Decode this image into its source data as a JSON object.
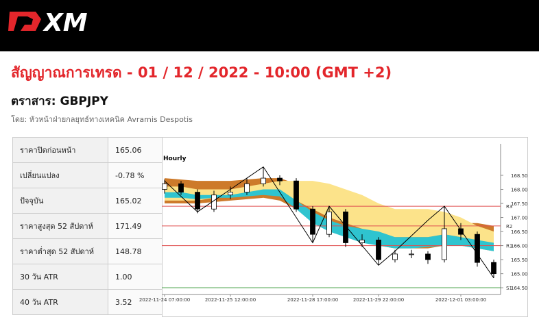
{
  "header": {
    "logo": "XM"
  },
  "title": "สัญญาณการเทรด - 01 / 12 / 2022 - 10:00 (GMT +2)",
  "instrument": "ตราสาร: GBPJPY",
  "author": "โดย: หัวหน้าฝ่ายกลยุทธ์ทางเทคนิค Avramis Despotis",
  "table": {
    "rows": [
      [
        "ราคาปิดก่อนหน้า",
        "165.06"
      ],
      [
        "เปลี่ยนแปลง",
        "-0.78 %"
      ],
      [
        "ปัจจุบัน",
        "165.02"
      ],
      [
        "ราคาสูงสุด 52 สัปดาห์",
        "171.49"
      ],
      [
        "ราคาต่ำสุด 52 สัปดาห์",
        "148.78"
      ],
      [
        "30 วัน ATR",
        "1.00"
      ],
      [
        "40 วัน ATR",
        "3.52"
      ]
    ]
  },
  "chart_data": {
    "type": "candlestick",
    "title": "Hourly",
    "categories": [
      "2022-11-24 07:00:00",
      null,
      null,
      null,
      "2022-11-25 12:00:00",
      null,
      null,
      null,
      null,
      "2022-11-28 17:00:00",
      null,
      null,
      null,
      "2022-11-29 22:00:00",
      null,
      null,
      null,
      null,
      "2022-12-01 03:00:00",
      null,
      null
    ],
    "open": [
      168.0,
      168.2,
      167.9,
      167.3,
      167.8,
      167.9,
      168.2,
      168.4,
      168.3,
      167.3,
      166.4,
      167.2,
      166.1,
      166.2,
      165.5,
      165.7,
      165.7,
      165.5,
      166.6,
      166.4,
      165.4
    ],
    "high": [
      168.35,
      168.3,
      168.0,
      167.95,
      168.1,
      168.4,
      168.8,
      168.5,
      168.4,
      167.4,
      167.4,
      167.3,
      166.4,
      166.3,
      165.85,
      165.85,
      165.8,
      167.4,
      166.8,
      166.5,
      165.5
    ],
    "low": [
      167.85,
      167.8,
      167.15,
      167.2,
      167.65,
      167.8,
      168.1,
      168.15,
      167.2,
      166.1,
      166.3,
      165.95,
      165.95,
      165.3,
      165.4,
      165.55,
      165.35,
      165.4,
      166.2,
      165.25,
      164.85
    ],
    "close": [
      168.2,
      167.9,
      167.3,
      167.8,
      167.9,
      168.2,
      168.4,
      168.3,
      167.3,
      166.4,
      167.2,
      166.1,
      166.2,
      165.5,
      165.7,
      165.7,
      165.5,
      166.6,
      166.4,
      165.4,
      165.0
    ],
    "zigzag": {
      "color": "#000000",
      "values": [
        168.3,
        167.75,
        167.2,
        167.6,
        168.0,
        168.4,
        168.8,
        167.9,
        167.0,
        166.1,
        167.4,
        166.7,
        166.0,
        165.3,
        165.8,
        166.35,
        166.9,
        167.4,
        166.55,
        165.7,
        164.85
      ]
    },
    "bands": [
      {
        "color": "#cd7a2a",
        "upper": [
          168.4,
          168.35,
          168.3,
          168.3,
          168.3,
          168.35,
          168.4,
          168.4,
          168.2,
          168.0,
          167.7,
          167.5,
          167.3,
          167.0,
          166.8,
          166.7,
          166.7,
          166.8,
          166.8,
          166.8,
          166.7
        ],
        "lower": [
          167.5,
          167.5,
          167.5,
          167.55,
          167.6,
          167.65,
          167.7,
          167.6,
          167.3,
          167.0,
          166.7,
          166.4,
          166.2,
          166.0,
          165.9,
          165.9,
          165.9,
          166.0,
          166.0,
          165.9,
          165.8
        ]
      },
      {
        "color": "#fce38a",
        "upper": [
          168.1,
          168.1,
          168.0,
          168.0,
          168.0,
          168.1,
          168.2,
          168.3,
          168.3,
          168.3,
          168.2,
          168.0,
          167.8,
          167.5,
          167.3,
          167.3,
          167.3,
          167.2,
          167.0,
          166.7,
          166.5
        ],
        "lower": [
          167.6,
          167.6,
          167.6,
          167.7,
          167.75,
          167.8,
          167.85,
          167.8,
          167.6,
          167.3,
          167.0,
          166.8,
          166.6,
          166.4,
          166.3,
          166.3,
          166.3,
          166.4,
          166.3,
          166.1,
          166.0
        ]
      },
      {
        "color": "#2fc4cf",
        "upper": [
          167.9,
          167.9,
          167.8,
          167.8,
          167.8,
          167.9,
          168.0,
          168.0,
          167.6,
          167.2,
          166.9,
          166.7,
          166.6,
          166.5,
          166.3,
          166.3,
          166.3,
          166.4,
          166.3,
          166.2,
          166.1
        ],
        "lower": [
          167.7,
          167.7,
          167.65,
          167.7,
          167.7,
          167.75,
          167.8,
          167.75,
          167.3,
          166.8,
          166.5,
          166.3,
          166.1,
          166.0,
          165.9,
          165.9,
          165.95,
          166.0,
          166.0,
          165.9,
          165.8
        ]
      }
    ],
    "levels": [
      {
        "label": "R3",
        "value": 167.4,
        "color": "#e05050"
      },
      {
        "label": "R2",
        "value": 166.7,
        "color": "#e05050"
      },
      {
        "label": "R1",
        "value": 166.0,
        "color": "#e05050"
      },
      {
        "label": "S1",
        "value": 164.5,
        "color": "#3a9a3a"
      }
    ],
    "ylim": [
      164.26,
      169.62
    ],
    "yticks": [
      {
        "value": 164.5,
        "label": "164.50"
      },
      {
        "value": 165,
        "label": "165.00"
      },
      {
        "value": 165.5,
        "label": "165.50"
      },
      {
        "value": 166,
        "label": "166.00"
      },
      {
        "value": 166.5,
        "label": "166.50"
      },
      {
        "value": 167,
        "label": "167.00"
      },
      {
        "value": 167.5,
        "label": "167.50"
      },
      {
        "value": 168,
        "label": "168.00"
      },
      {
        "value": 168.5,
        "label": "168.50"
      }
    ]
  }
}
